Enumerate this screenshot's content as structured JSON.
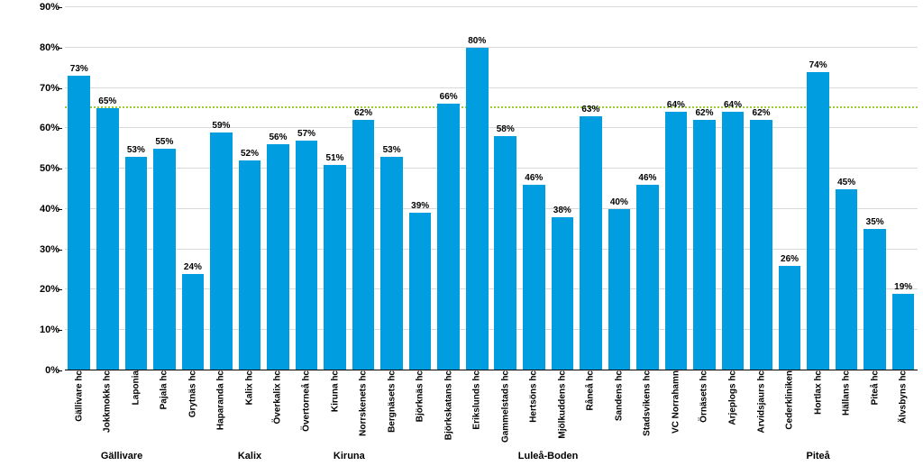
{
  "chart": {
    "type": "bar",
    "ylim": [
      0,
      90
    ],
    "ytick_step": 10,
    "ytick_suffix": "%",
    "value_suffix": "%",
    "background_color": "#ffffff",
    "grid_color": "#d9d9d9",
    "baseline_color": "#000000",
    "axis_label_color": "#000000",
    "bar_color": "#009de0",
    "bar_width": 0.78,
    "value_label_fontsize": 10,
    "value_label_fontweight": "700",
    "xaxis_label_fontsize": 10,
    "xaxis_label_fontweight": "700",
    "yaxis_label_fontsize": 11,
    "yaxis_label_fontweight": "700",
    "group_label_fontsize": 11,
    "group_label_fontweight": "700",
    "benchmark": {
      "value": 65,
      "color": "#9acd32",
      "style": "dotted",
      "width": 2
    },
    "bars": [
      {
        "label": "Gällivare hc",
        "value": 73,
        "group": "Gällivare"
      },
      {
        "label": "Jokkmokks hc",
        "value": 65,
        "group": "Gällivare"
      },
      {
        "label": "Laponia",
        "value": 53,
        "group": "Gällivare"
      },
      {
        "label": "Pajala hc",
        "value": 55,
        "group": "Gällivare"
      },
      {
        "label": "Grytnäs hc",
        "value": 24,
        "group": "Kalix"
      },
      {
        "label": "Haparanda hc",
        "value": 59,
        "group": "Kalix"
      },
      {
        "label": "Kalix hc",
        "value": 52,
        "group": "Kalix"
      },
      {
        "label": "Överkalix hc",
        "value": 56,
        "group": "Kalix"
      },
      {
        "label": "Övertorneå hc",
        "value": 57,
        "group": "Kalix"
      },
      {
        "label": "Kiruna hc",
        "value": 51,
        "group": "Kiruna"
      },
      {
        "label": "Norrskenets hc",
        "value": 62,
        "group": "Kiruna"
      },
      {
        "label": "Bergnäsets hc",
        "value": 53,
        "group": "Luleå-Boden"
      },
      {
        "label": "Björknäs hc",
        "value": 39,
        "group": "Luleå-Boden"
      },
      {
        "label": "Björkskatans hc",
        "value": 66,
        "group": "Luleå-Boden"
      },
      {
        "label": "Erikslunds hc",
        "value": 80,
        "group": "Luleå-Boden"
      },
      {
        "label": "Gammelstads hc",
        "value": 58,
        "group": "Luleå-Boden"
      },
      {
        "label": "Hertsöns hc",
        "value": 46,
        "group": "Luleå-Boden"
      },
      {
        "label": "Mjölkuddens hc",
        "value": 38,
        "group": "Luleå-Boden"
      },
      {
        "label": "Råneå hc",
        "value": 63,
        "group": "Luleå-Boden"
      },
      {
        "label": "Sandens hc",
        "value": 40,
        "group": "Luleå-Boden"
      },
      {
        "label": "Stadsvikens hc",
        "value": 46,
        "group": "Luleå-Boden"
      },
      {
        "label": "VC Norrahamn",
        "value": 64,
        "group": "Luleå-Boden"
      },
      {
        "label": "Örnäsets hc",
        "value": 62,
        "group": "Luleå-Boden"
      },
      {
        "label": "Arjeplogs hc",
        "value": 64,
        "group": "Piteå"
      },
      {
        "label": "Arvidsjaurs hc",
        "value": 62,
        "group": "Piteå"
      },
      {
        "label": "Cederkliniken",
        "value": 26,
        "group": "Piteå"
      },
      {
        "label": "Hortlax hc",
        "value": 74,
        "group": "Piteå"
      },
      {
        "label": "Hällans hc",
        "value": 45,
        "group": "Piteå"
      },
      {
        "label": "Piteå hc",
        "value": 35,
        "group": "Piteå"
      },
      {
        "label": "Älvsbyns hc",
        "value": 19,
        "group": "Piteå"
      }
    ],
    "groups": [
      {
        "label": "Gällivare",
        "span": 4
      },
      {
        "label": "Kalix",
        "span": 5
      },
      {
        "label": "Kiruna",
        "span": 2
      },
      {
        "label": "Luleå-Boden",
        "span": 12
      },
      {
        "label": "Piteå",
        "span": 7
      }
    ]
  }
}
